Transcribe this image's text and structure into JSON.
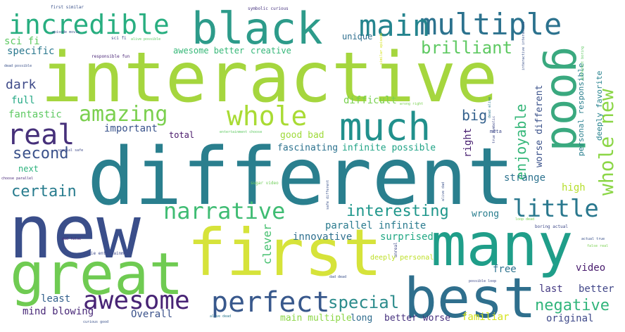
{
  "words": [
    {
      "text": "different",
      "color": "#2a7f8e"
    },
    {
      "text": "interactive",
      "color": "#a5d63e"
    },
    {
      "text": "new",
      "color": "#3a4e8a"
    },
    {
      "text": "first",
      "color": "#d6e33a"
    },
    {
      "text": "great",
      "color": "#6fcb52"
    },
    {
      "text": "best",
      "color": "#2f6f8d"
    },
    {
      "text": "many",
      "color": "#1f9e89"
    },
    {
      "text": "black",
      "color": "#2d9b8a"
    },
    {
      "text": "good",
      "color": "#3aa97f"
    },
    {
      "text": "much",
      "color": "#21908c"
    },
    {
      "text": "multiple",
      "color": "#2c728e"
    },
    {
      "text": "main",
      "color": "#25848e"
    },
    {
      "text": "incredible",
      "color": "#28ae80"
    },
    {
      "text": "real",
      "color": "#46307a"
    },
    {
      "text": "whole",
      "color": "#a9db34"
    },
    {
      "text": "amazing",
      "color": "#7bd04f"
    },
    {
      "text": "narrative",
      "color": "#3fbc73"
    },
    {
      "text": "perfect",
      "color": "#38588c"
    },
    {
      "text": "awesome",
      "color": "#482475"
    },
    {
      "text": "little",
      "color": "#2a788e"
    },
    {
      "text": "whole new",
      "color": "#8bd646"
    },
    {
      "text": "brilliant",
      "color": "#5ec962"
    },
    {
      "text": "second",
      "color": "#3b528b"
    },
    {
      "text": "certain",
      "color": "#287c8e"
    },
    {
      "text": "interesting",
      "color": "#1f978b"
    },
    {
      "text": "enjoyable",
      "color": "#35b779"
    },
    {
      "text": "special",
      "color": "#2c8c8c"
    },
    {
      "text": "negative",
      "color": "#31b57b"
    },
    {
      "text": "dark",
      "color": "#3e4a89"
    },
    {
      "text": "big",
      "color": "#34618d"
    },
    {
      "text": "sci fi",
      "color": "#5ec962"
    },
    {
      "text": "specific",
      "color": "#2a788e"
    },
    {
      "text": "full",
      "color": "#22a884"
    },
    {
      "text": "fantastic",
      "color": "#5ec962"
    },
    {
      "text": "difficult",
      "color": "#7ad151"
    },
    {
      "text": "important",
      "color": "#3a548c"
    },
    {
      "text": "fascinating",
      "color": "#2c728e"
    },
    {
      "text": "infinite possible",
      "color": "#20a386"
    },
    {
      "text": "good bad",
      "color": "#9fda3a"
    },
    {
      "text": "parallel infinite",
      "color": "#2a7b8e"
    },
    {
      "text": "clever",
      "color": "#46c06f"
    },
    {
      "text": "innovative",
      "color": "#2e6f8e"
    },
    {
      "text": "surprised",
      "color": "#22a884"
    },
    {
      "text": "deeply personal",
      "color": "#bddf26"
    },
    {
      "text": "free",
      "color": "#2c728e"
    },
    {
      "text": "video",
      "color": "#481b6d"
    },
    {
      "text": "least",
      "color": "#34618d"
    },
    {
      "text": "mind blowing",
      "color": "#482878"
    },
    {
      "text": "Overall",
      "color": "#3b528b"
    },
    {
      "text": "main multiple",
      "color": "#8bd646"
    },
    {
      "text": "long",
      "color": "#2f6c8e"
    },
    {
      "text": "better worse",
      "color": "#46307e"
    },
    {
      "text": "familiar",
      "color": "#d5e21a"
    },
    {
      "text": "original",
      "color": "#3e4989"
    },
    {
      "text": "last",
      "color": "#443983"
    },
    {
      "text": "better",
      "color": "#404688"
    },
    {
      "text": "strange",
      "color": "#2c728e"
    },
    {
      "text": "high",
      "color": "#b5de2b"
    },
    {
      "text": "wrong",
      "color": "#287d8e"
    },
    {
      "text": "unique",
      "color": "#2e6e8e"
    },
    {
      "text": "creative",
      "color": "#35b779"
    },
    {
      "text": "awesome better",
      "color": "#37b878"
    },
    {
      "text": "next",
      "color": "#2db27d"
    },
    {
      "text": "total",
      "color": "#48186a"
    },
    {
      "text": "right",
      "color": "#481f70"
    },
    {
      "text": "worse different",
      "color": "#3b528b"
    },
    {
      "text": "personal responsible",
      "color": "#2a7f8e"
    },
    {
      "text": "deeply favorite",
      "color": "#26828e"
    },
    {
      "text": "first similar",
      "color": "#3b528b"
    },
    {
      "text": "symbolic curious",
      "color": "#46337f"
    },
    {
      "text": "responsible fun",
      "color": "#482475"
    },
    {
      "text": "dead possible",
      "color": "#3b528b"
    },
    {
      "text": "choose parallel",
      "color": "#482878"
    },
    {
      "text": "movie entertainment",
      "color": "#3e4a89"
    },
    {
      "text": "dad false",
      "color": "#482475"
    },
    {
      "text": "sugar video",
      "color": "#6ece58"
    },
    {
      "text": "loop dead",
      "color": "#7ad151"
    },
    {
      "text": "boring actual",
      "color": "#3e4989"
    },
    {
      "text": "actual true",
      "color": "#3b528b"
    },
    {
      "text": "false real",
      "color": "#7ad151"
    },
    {
      "text": "possible loop",
      "color": "#3e4989"
    },
    {
      "text": "dad dead",
      "color": "#3b528b"
    },
    {
      "text": "alive dead",
      "color": "#2a788e"
    },
    {
      "text": "curious good",
      "color": "#3b528b"
    },
    {
      "text": "special safe",
      "color": "#3e4989"
    },
    {
      "text": "entertainment choose",
      "color": "#5ec962"
    },
    {
      "text": "wrong right",
      "color": "#7ad151"
    },
    {
      "text": "episode movie",
      "color": "#3b528b"
    },
    {
      "text": "alive possible",
      "color": "#5ec962"
    },
    {
      "text": "sci fi",
      "color": "#3e4989"
    },
    {
      "text": "meta",
      "color": "#3e4989"
    },
    {
      "text": "true symbolic",
      "color": "#3e4989"
    },
    {
      "text": "dead alive",
      "color": "#2a788e"
    },
    {
      "text": "different boring",
      "color": "#5ec962"
    },
    {
      "text": "interactive interactive",
      "color": "#3b528b"
    },
    {
      "text": "similar episode",
      "color": "#d5e21a"
    },
    {
      "text": "safe different",
      "color": "#3b528b"
    },
    {
      "text": "alive dad",
      "color": "#3b528b"
    },
    {
      "text": "unreal",
      "color": "#3e4989"
    }
  ]
}
